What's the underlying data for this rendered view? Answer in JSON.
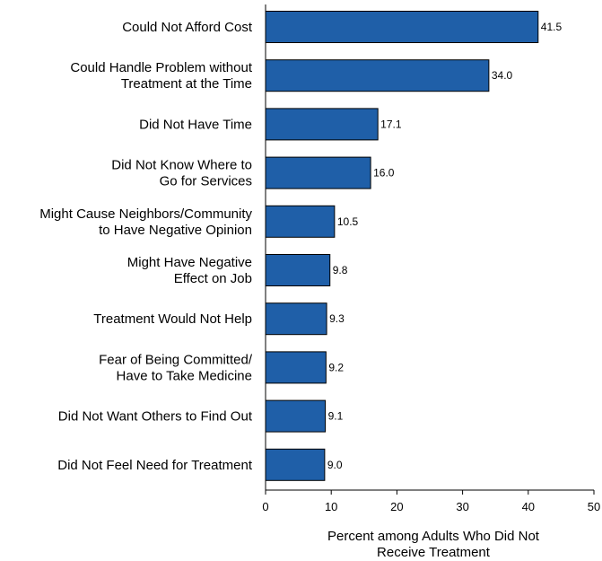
{
  "chart_data": {
    "type": "bar",
    "orientation": "horizontal",
    "title": "",
    "xlabel": "Percent among Adults Who Did Not Receive Treatment",
    "ylabel": "",
    "xlim": [
      0,
      50
    ],
    "xticks": [
      0,
      10,
      20,
      30,
      40,
      50
    ],
    "grid": false,
    "legend": "none",
    "bar_color": "#1f5fa8",
    "bar_edge_color": "#000000",
    "categories": [
      [
        "Could Not Afford Cost"
      ],
      [
        "Could Handle Problem without",
        "Treatment at the Time"
      ],
      [
        "Did Not Have Time"
      ],
      [
        "Did Not Know Where to",
        "Go for Services"
      ],
      [
        "Might Cause Neighbors/Community",
        "to Have Negative Opinion"
      ],
      [
        "Might Have Negative",
        "Effect on Job"
      ],
      [
        "Treatment Would Not Help"
      ],
      [
        "Fear of Being Committed/",
        "Have to Take Medicine"
      ],
      [
        "Did Not Want Others to Find Out"
      ],
      [
        "Did Not Feel Need for Treatment"
      ]
    ],
    "values": [
      41.5,
      34.0,
      17.1,
      16.0,
      10.5,
      9.8,
      9.3,
      9.2,
      9.1,
      9.0
    ],
    "value_labels": [
      "41.5",
      "34.0",
      "17.1",
      "16.0",
      "10.5",
      "9.8",
      "9.3",
      "9.2",
      "9.1",
      "9.0"
    ]
  }
}
